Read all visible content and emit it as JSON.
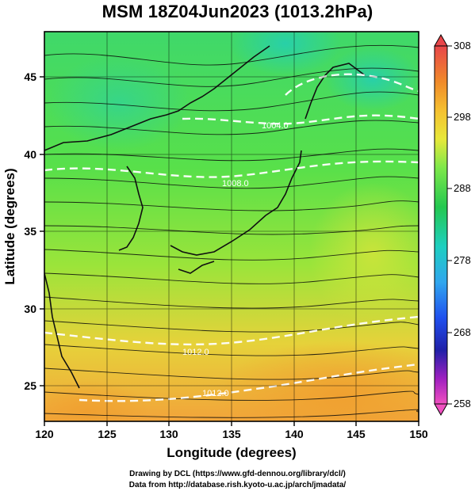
{
  "title": "MSM 18Z04Jun2023 (1013.2hPa)",
  "axes": {
    "xlabel": "Longitude (degrees)",
    "ylabel": "Latitude  (degrees)",
    "xticks": [
      "120",
      "125",
      "130",
      "135",
      "140",
      "145",
      "150"
    ],
    "yticks": [
      "25",
      "30",
      "35",
      "40",
      "45"
    ]
  },
  "colorbar": {
    "labels": [
      "308",
      "298",
      "288",
      "278",
      "268",
      "258"
    ],
    "values": [
      308,
      298,
      288,
      278,
      268,
      258
    ],
    "colors": [
      "#e8464a",
      "#f08a2a",
      "#f5c030",
      "#e8e83a",
      "#7ee84a",
      "#24c850",
      "#1ecfc0",
      "#30a6ee",
      "#2050ee",
      "#2020a8",
      "#c020c0",
      "#f050c0"
    ]
  },
  "isobar_labels": [
    "1004.0",
    "1008.0",
    "1012.0",
    "1012.0"
  ],
  "credits": {
    "line1": "Drawing by DCL (https://www.gfd-dennou.org/library/dcl/)",
    "line2": "Data from http://database.rish.kyoto-u.ac.jp/arch/jmadata/"
  },
  "chart_data": {
    "type": "heatmap",
    "title": "MSM 18Z04Jun2023 (1013.2hPa)",
    "xlabel": "Longitude (degrees)",
    "ylabel": "Latitude  (degrees)",
    "xlim": [
      120,
      150
    ],
    "ylim": [
      22.4,
      47.6
    ],
    "x_ticks": [
      120,
      125,
      130,
      135,
      140,
      145,
      150
    ],
    "y_ticks": [
      25,
      30,
      35,
      40,
      45
    ],
    "colorbar_range": [
      258,
      308
    ],
    "colorbar_ticks": [
      258,
      268,
      278,
      288,
      298,
      308
    ],
    "grid": true,
    "isobars": [
      1004.0,
      1008.0,
      1012.0
    ]
  }
}
